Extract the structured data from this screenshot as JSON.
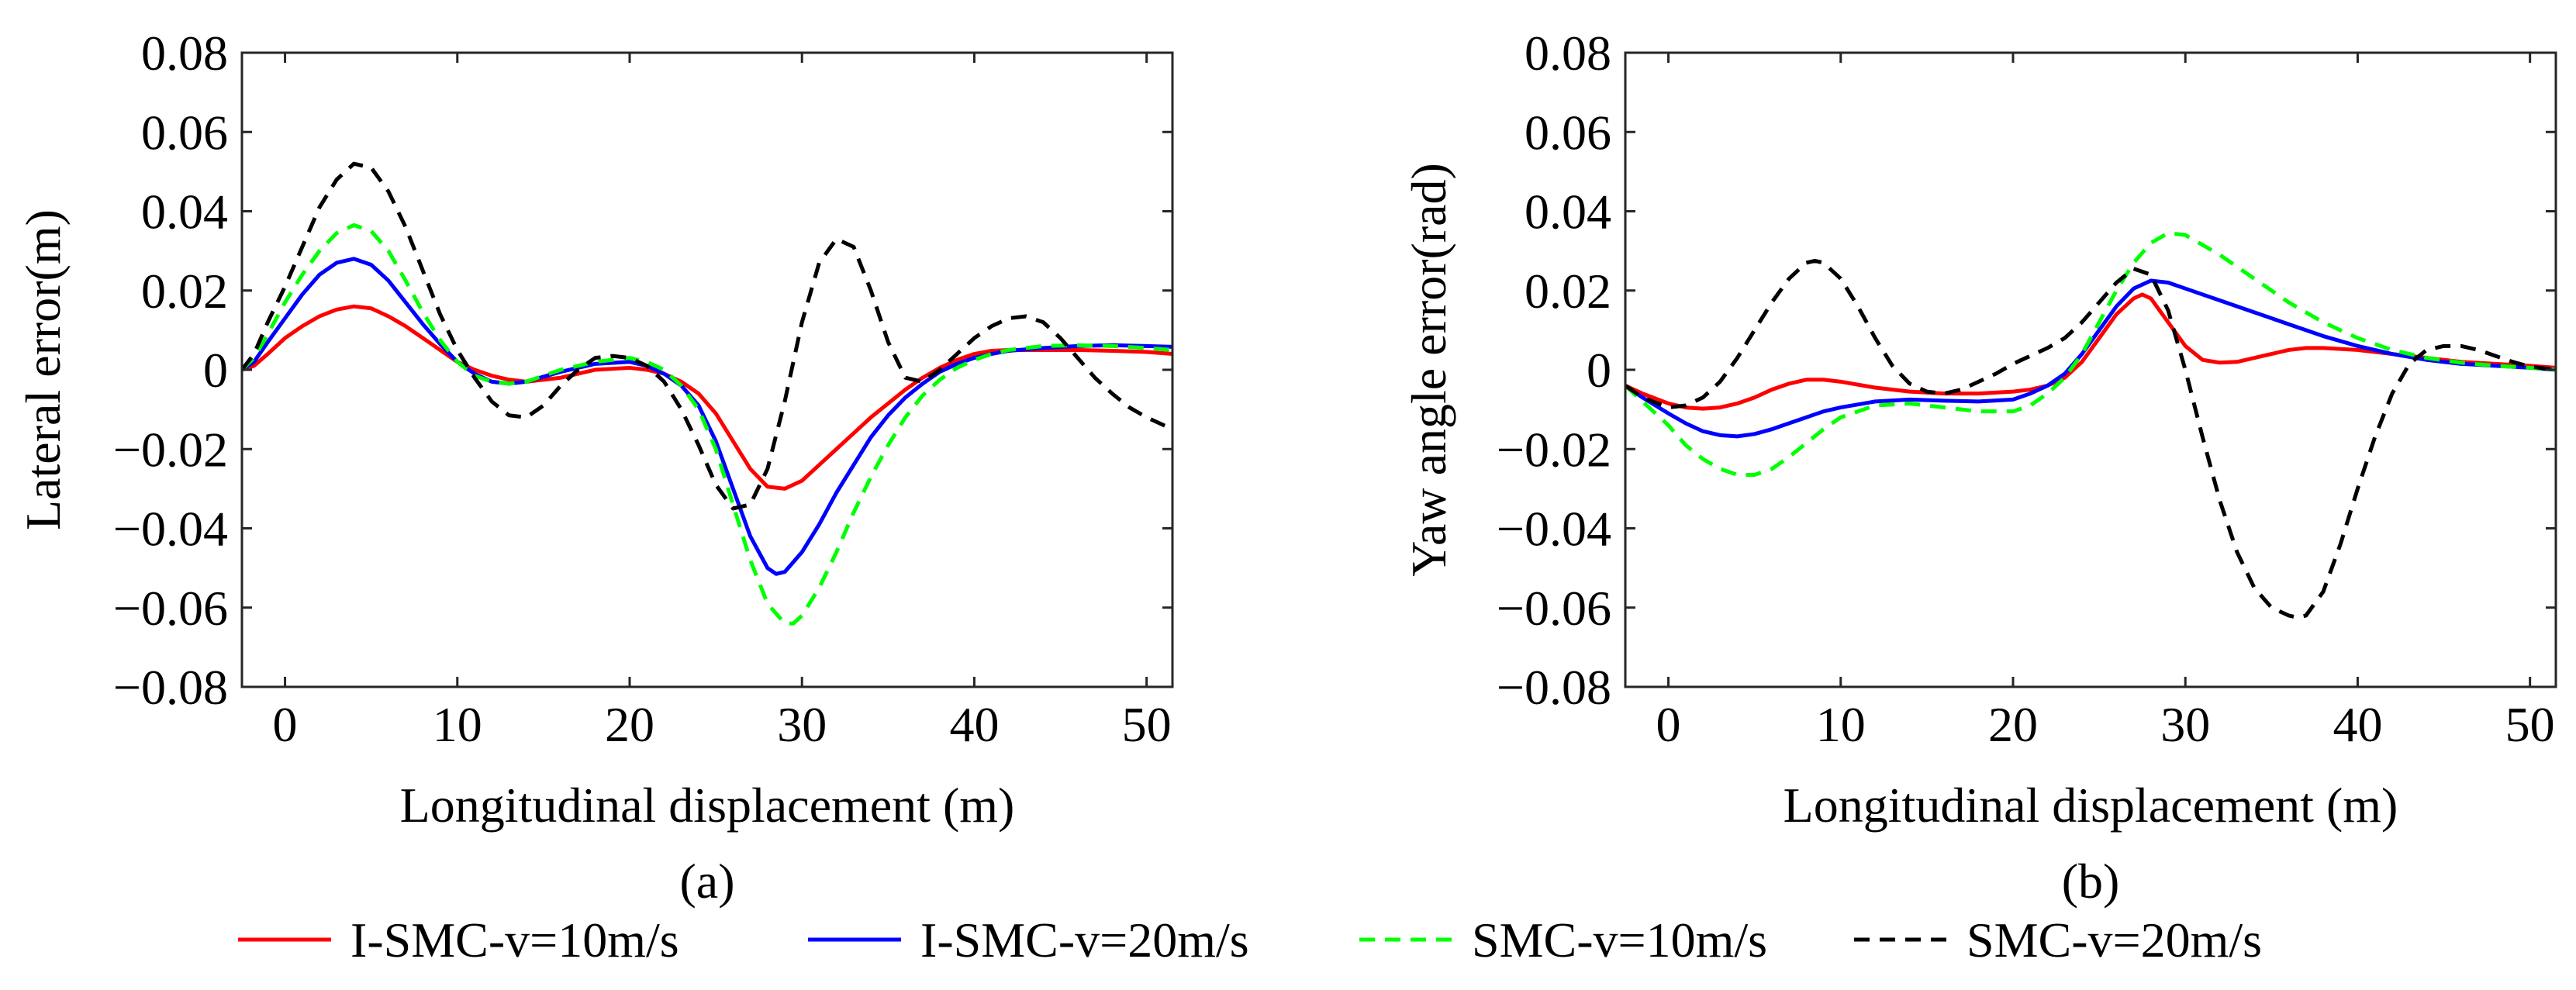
{
  "colors": {
    "i_smc_10": "#ff0000",
    "i_smc_20": "#0000ff",
    "smc_10": "#00ff00",
    "smc_20": "#000000",
    "axes": "#262626"
  },
  "legend": {
    "entries": [
      {
        "label": "I-SMC-v=10m/s",
        "style": "solid",
        "color": "#ff0000"
      },
      {
        "label": "I-SMC-v=20m/s",
        "style": "solid",
        "color": "#0000ff"
      },
      {
        "label": "SMC-v=10m/s",
        "style": "dashed",
        "color": "#00ff00"
      },
      {
        "label": "SMC-v=20m/s",
        "style": "dashed",
        "color": "#000000"
      }
    ]
  },
  "chart_data": [
    {
      "type": "line",
      "caption": "(a)",
      "xlabel": "Longitudinal displacement (m)",
      "ylabel": "Lateral error(m)",
      "xlim": [
        -2.5,
        51.5
      ],
      "ylim": [
        -0.08,
        0.08
      ],
      "xticks": [
        0,
        10,
        20,
        30,
        40,
        50
      ],
      "yticks": [
        -0.08,
        -0.06,
        -0.04,
        -0.02,
        0,
        0.02,
        0.04,
        0.06,
        0.08
      ],
      "ytick_labels": [
        "−0.08",
        "−0.06",
        "−0.04",
        "−0.02",
        "0",
        "0.02",
        "0.04",
        "0.06",
        "0.08"
      ],
      "xtick_labels": [
        "0",
        "10",
        "20",
        "30",
        "40",
        "50"
      ],
      "grid": false,
      "series": [
        {
          "name": "I-SMC-v=10m/s",
          "style": "solid",
          "color": "#ff0000",
          "x": [
            -2.5,
            -1.8,
            -1,
            0,
            1,
            2,
            3,
            4,
            5,
            6,
            7,
            8,
            9,
            10,
            11,
            12,
            13,
            14,
            16,
            18,
            20,
            21,
            22,
            23,
            24,
            25,
            26,
            27,
            28,
            29,
            30,
            31,
            32,
            33,
            34,
            35,
            36,
            37,
            38,
            39,
            40,
            41,
            42,
            44,
            46,
            48,
            50,
            51.5
          ],
          "y": [
            0,
            0.001,
            0.004,
            0.008,
            0.011,
            0.0135,
            0.0152,
            0.016,
            0.0155,
            0.0135,
            0.011,
            0.008,
            0.005,
            0.002,
            0.0,
            -0.0015,
            -0.0025,
            -0.003,
            -0.002,
            0.0,
            0.0005,
            0.0,
            -0.001,
            -0.003,
            -0.006,
            -0.011,
            -0.018,
            -0.025,
            -0.0295,
            -0.03,
            -0.028,
            -0.024,
            -0.02,
            -0.016,
            -0.012,
            -0.0085,
            -0.005,
            -0.002,
            0.0005,
            0.0025,
            0.004,
            0.0048,
            0.005,
            0.005,
            0.005,
            0.0048,
            0.0045,
            0.004
          ]
        },
        {
          "name": "I-SMC-v=20m/s",
          "style": "solid",
          "color": "#0000ff",
          "x": [
            -2.5,
            -1.8,
            -1,
            0,
            1,
            2,
            3,
            4,
            5,
            6,
            7,
            8,
            9,
            10,
            11,
            12,
            13,
            14,
            16,
            18,
            20,
            21,
            22,
            23,
            24,
            25,
            26,
            27,
            28,
            28.5,
            29,
            30,
            31,
            32,
            33,
            34,
            35,
            36,
            37,
            38,
            39,
            40,
            41,
            42,
            44,
            46,
            48,
            50,
            51.5
          ],
          "y": [
            0,
            0.002,
            0.007,
            0.013,
            0.019,
            0.024,
            0.027,
            0.028,
            0.0265,
            0.0225,
            0.017,
            0.0115,
            0.0065,
            0.002,
            -0.001,
            -0.003,
            -0.0035,
            -0.003,
            -0.0005,
            0.0015,
            0.002,
            0.001,
            -0.001,
            -0.004,
            -0.009,
            -0.018,
            -0.03,
            -0.042,
            -0.05,
            -0.0515,
            -0.051,
            -0.046,
            -0.039,
            -0.031,
            -0.024,
            -0.017,
            -0.0115,
            -0.007,
            -0.0035,
            -0.0005,
            0.0015,
            0.003,
            0.004,
            0.0048,
            0.0055,
            0.006,
            0.0062,
            0.006,
            0.0058
          ]
        },
        {
          "name": "SMC-v=10m/s",
          "style": "dashed",
          "color": "#00ff00",
          "x": [
            -2.5,
            -1.8,
            -1,
            0,
            1,
            2,
            3,
            4,
            5,
            6,
            7,
            8,
            9,
            10,
            11,
            12,
            13,
            14,
            16,
            18,
            20,
            21,
            22,
            23,
            24,
            25,
            26,
            27,
            28,
            29,
            29.5,
            30,
            31,
            32,
            33,
            34,
            35,
            36,
            37,
            38,
            39,
            40,
            41,
            42,
            44,
            46,
            48,
            50,
            51.5
          ],
          "y": [
            0,
            0.003,
            0.009,
            0.017,
            0.024,
            0.03,
            0.0345,
            0.0365,
            0.035,
            0.03,
            0.0225,
            0.0145,
            0.0075,
            0.002,
            -0.0015,
            -0.003,
            -0.0035,
            -0.003,
            0.0,
            0.002,
            0.003,
            0.002,
            0.0,
            -0.004,
            -0.01,
            -0.02,
            -0.034,
            -0.048,
            -0.059,
            -0.064,
            -0.064,
            -0.062,
            -0.055,
            -0.046,
            -0.036,
            -0.027,
            -0.019,
            -0.012,
            -0.0065,
            -0.0025,
            0.0005,
            0.0025,
            0.004,
            0.005,
            0.006,
            0.0062,
            0.006,
            0.0055,
            0.005
          ]
        },
        {
          "name": "SMC-v=20m/s",
          "style": "dashed",
          "color": "#000000",
          "x": [
            -2.5,
            -1.8,
            -1,
            0,
            1,
            2,
            3,
            4,
            5,
            6,
            7,
            8,
            9,
            10,
            11,
            12,
            13,
            14,
            15,
            16,
            17,
            18,
            19,
            20,
            21,
            22,
            23,
            24,
            25,
            26,
            27,
            28,
            29,
            30,
            31,
            32,
            33,
            34,
            35,
            36,
            37,
            38,
            39,
            40,
            41,
            42,
            43,
            44,
            45,
            46,
            47,
            48,
            49,
            50,
            51.5
          ],
          "y": [
            0,
            0.004,
            0.012,
            0.021,
            0.031,
            0.041,
            0.048,
            0.052,
            0.051,
            0.045,
            0.036,
            0.025,
            0.014,
            0.005,
            -0.002,
            -0.008,
            -0.0115,
            -0.012,
            -0.009,
            -0.004,
            0.0,
            0.003,
            0.0035,
            0.003,
            0.001,
            -0.003,
            -0.01,
            -0.019,
            -0.029,
            -0.035,
            -0.034,
            -0.025,
            -0.008,
            0.012,
            0.027,
            0.033,
            0.031,
            0.02,
            0.007,
            -0.002,
            -0.003,
            0.0,
            0.004,
            0.008,
            0.011,
            0.013,
            0.0135,
            0.012,
            0.008,
            0.003,
            -0.002,
            -0.006,
            -0.0095,
            -0.012,
            -0.015
          ]
        }
      ]
    },
    {
      "type": "line",
      "caption": "(b)",
      "xlabel": "Longitudinal displacement (m)",
      "ylabel": "Yaw angle error(rad)",
      "xlim": [
        -2.5,
        51.5
      ],
      "ylim": [
        -0.08,
        0.08
      ],
      "xticks": [
        0,
        10,
        20,
        30,
        40,
        50
      ],
      "yticks": [
        -0.08,
        -0.06,
        -0.04,
        -0.02,
        0,
        0.02,
        0.04,
        0.06,
        0.08
      ],
      "ytick_labels": [
        "−0.08",
        "−0.06",
        "−0.04",
        "−0.02",
        "0",
        "0.02",
        "0.04",
        "0.06",
        "0.08"
      ],
      "xtick_labels": [
        "0",
        "10",
        "20",
        "30",
        "40",
        "50"
      ],
      "grid": false,
      "series": [
        {
          "name": "I-SMC-v=10m/s",
          "style": "solid",
          "color": "#ff0000",
          "x": [
            -2.5,
            -1.5,
            0,
            1,
            2,
            3,
            4,
            5,
            6,
            7,
            8,
            9,
            10,
            12,
            14,
            16,
            18,
            20,
            21,
            22,
            23,
            24,
            25,
            26,
            27,
            27.5,
            28,
            29,
            30,
            31,
            32,
            33,
            34,
            35,
            36,
            37,
            38,
            40,
            42,
            44,
            46,
            48,
            50,
            51.5
          ],
          "y": [
            -0.004,
            -0.006,
            -0.0085,
            -0.0095,
            -0.0098,
            -0.0095,
            -0.0085,
            -0.007,
            -0.005,
            -0.0035,
            -0.0025,
            -0.0025,
            -0.003,
            -0.0045,
            -0.0055,
            -0.006,
            -0.006,
            -0.0055,
            -0.005,
            -0.004,
            -0.002,
            0.002,
            0.008,
            0.014,
            0.018,
            0.019,
            0.018,
            0.012,
            0.006,
            0.0025,
            0.0018,
            0.002,
            0.003,
            0.004,
            0.005,
            0.0055,
            0.0055,
            0.005,
            0.004,
            0.003,
            0.002,
            0.0015,
            0.001,
            0.0005
          ]
        },
        {
          "name": "I-SMC-v=20m/s",
          "style": "solid",
          "color": "#0000ff",
          "x": [
            -2.5,
            -1.5,
            0,
            1,
            2,
            3,
            4,
            5,
            6,
            7,
            8,
            9,
            10,
            12,
            14,
            16,
            18,
            20,
            21,
            22,
            23,
            24,
            25,
            26,
            27,
            28,
            29,
            30,
            32,
            34,
            36,
            38,
            40,
            42,
            44,
            46,
            48,
            50,
            51.5
          ],
          "y": [
            -0.004,
            -0.007,
            -0.011,
            -0.0135,
            -0.0155,
            -0.0165,
            -0.0168,
            -0.0162,
            -0.015,
            -0.0135,
            -0.012,
            -0.0105,
            -0.0095,
            -0.008,
            -0.0075,
            -0.0078,
            -0.008,
            -0.0075,
            -0.006,
            -0.004,
            -0.001,
            0.004,
            0.01,
            0.016,
            0.0205,
            0.0225,
            0.022,
            0.0205,
            0.0175,
            0.0145,
            0.0115,
            0.0085,
            0.006,
            0.004,
            0.0025,
            0.0015,
            0.001,
            0.0005,
            0.0
          ]
        },
        {
          "name": "SMC-v=10m/s",
          "style": "dashed",
          "color": "#00ff00",
          "x": [
            -2.5,
            -1.5,
            0,
            1,
            2,
            3,
            4,
            5,
            6,
            7,
            8,
            9,
            10,
            12,
            14,
            16,
            18,
            20,
            21,
            22,
            23,
            24,
            25,
            26,
            27,
            28,
            29,
            30,
            32,
            34,
            36,
            38,
            40,
            42,
            44,
            46,
            48,
            50,
            51.5
          ],
          "y": [
            -0.004,
            -0.008,
            -0.014,
            -0.019,
            -0.0225,
            -0.025,
            -0.0265,
            -0.0265,
            -0.025,
            -0.022,
            -0.0185,
            -0.015,
            -0.012,
            -0.009,
            -0.0085,
            -0.0095,
            -0.0105,
            -0.0105,
            -0.009,
            -0.006,
            -0.002,
            0.004,
            0.012,
            0.02,
            0.027,
            0.032,
            0.0345,
            0.034,
            0.029,
            0.023,
            0.017,
            0.012,
            0.008,
            0.005,
            0.003,
            0.0018,
            0.001,
            0.0005,
            0.0
          ]
        },
        {
          "name": "SMC-v=20m/s",
          "style": "dashed",
          "color": "#000000",
          "x": [
            -2.5,
            -1.5,
            0,
            1,
            2,
            3,
            4,
            5,
            6,
            7,
            8,
            8.5,
            9,
            10,
            11,
            12,
            13,
            14,
            15,
            16,
            17,
            18,
            19,
            20,
            21,
            22,
            23,
            24,
            25,
            26,
            27,
            28,
            29,
            30,
            31,
            32,
            33,
            34,
            35,
            36,
            36.5,
            37,
            38,
            39,
            40,
            41,
            42,
            43,
            44,
            45,
            46,
            47,
            48,
            49,
            50,
            51.5
          ],
          "y": [
            -0.004,
            -0.007,
            -0.0095,
            -0.009,
            -0.007,
            -0.003,
            0.003,
            0.01,
            0.017,
            0.023,
            0.027,
            0.0275,
            0.027,
            0.023,
            0.016,
            0.008,
            0.001,
            -0.0035,
            -0.0055,
            -0.006,
            -0.005,
            -0.003,
            -0.001,
            0.0015,
            0.0035,
            0.0055,
            0.008,
            0.012,
            0.017,
            0.022,
            0.0255,
            0.024,
            0.015,
            0.0,
            -0.017,
            -0.033,
            -0.046,
            -0.055,
            -0.06,
            -0.062,
            -0.0625,
            -0.062,
            -0.056,
            -0.044,
            -0.03,
            -0.017,
            -0.006,
            0.0015,
            0.005,
            0.006,
            0.006,
            0.005,
            0.0035,
            0.002,
            0.0008,
            0.0
          ]
        }
      ]
    }
  ]
}
